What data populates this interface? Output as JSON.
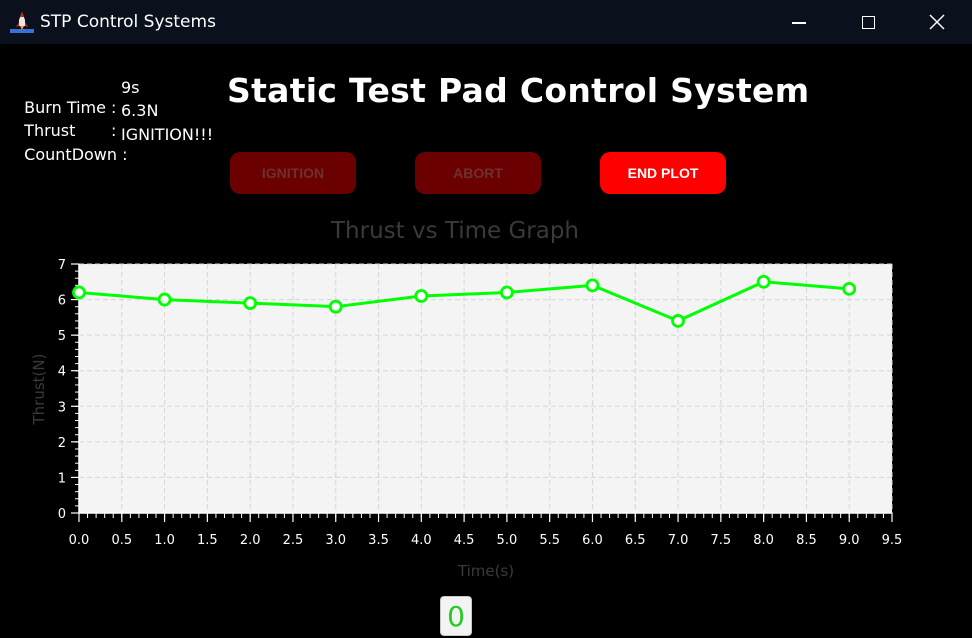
{
  "window": {
    "title": "STP Control Systems",
    "icon": "rocket-icon",
    "controls": [
      "minimize-icon",
      "maximize-icon",
      "close-icon"
    ]
  },
  "info": {
    "burn_time_label": "Burn Time :",
    "burn_time_value": "9s",
    "thrust_label": "Thrust       :",
    "thrust_value": "6.3N",
    "countdown_label": "CountDown :",
    "countdown_value": "IGNITION!!!"
  },
  "header": {
    "title": "Static Test Pad Control System"
  },
  "buttons": {
    "ignition": "IGNITION",
    "abort": "ABORT",
    "end_plot": "END PLOT"
  },
  "colors": {
    "active_button": "#ff0000",
    "disabled_button": "#6b0000",
    "series": "#00ff00",
    "plot_background": "#f4f4f4"
  },
  "chart_data": {
    "type": "line",
    "title": "Thrust vs Time Graph",
    "xlabel": "Time(s)",
    "ylabel": "Thrust(N)",
    "xlim": [
      0,
      9.5
    ],
    "ylim": [
      0,
      7
    ],
    "grid": true,
    "x_ticks": [
      "0.0",
      "0.5",
      "1.0",
      "1.5",
      "2.0",
      "2.5",
      "3.0",
      "3.5",
      "4.0",
      "4.5",
      "5.0",
      "5.5",
      "6.0",
      "6.5",
      "7.0",
      "7.5",
      "8.0",
      "8.5",
      "9.0",
      "9.5"
    ],
    "y_ticks": [
      "0",
      "1",
      "2",
      "3",
      "4",
      "5",
      "6",
      "7"
    ],
    "series": [
      {
        "x": [
          0,
          1,
          2,
          3,
          4,
          5,
          6,
          7,
          8,
          9
        ],
        "y": [
          6.2,
          6.0,
          5.9,
          5.8,
          6.1,
          6.2,
          6.4,
          5.4,
          6.5,
          6.3
        ]
      }
    ]
  },
  "counter": {
    "value": "0"
  }
}
